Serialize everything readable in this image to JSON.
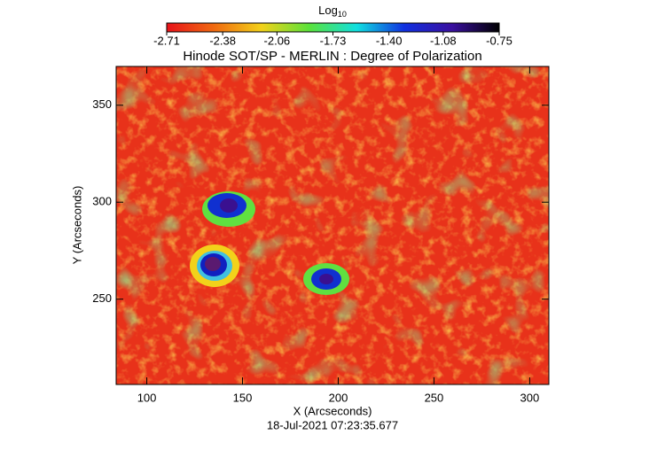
{
  "chart_data": {
    "type": "image",
    "title": "Hinode SOT/SP - MERLIN : Degree of Polarization",
    "subtitle": "18-Jul-2021 07:23:35.677",
    "x_label": "X (Arcseconds)",
    "y_label": "Y (Arcseconds)",
    "colorbar_label": "Log",
    "colorbar_label_sub": "10",
    "colormap": [
      "#e8121a",
      "#f06a10",
      "#f2d21a",
      "#5ae23a",
      "#10e0e0",
      "#1030e0",
      "#3a10a0",
      "#000000"
    ],
    "clim": [
      -2.71,
      -0.75
    ],
    "cticks": [
      -2.71,
      -2.38,
      -2.06,
      -1.73,
      {
        "value": -1.4,
        "label": "-1.40"
      },
      -1.08,
      -0.75
    ],
    "xlim": [
      84,
      310
    ],
    "xticks": [
      100,
      150,
      200,
      250,
      300
    ],
    "ylim": [
      206,
      370
    ],
    "yticks": [
      250,
      300,
      350
    ]
  }
}
